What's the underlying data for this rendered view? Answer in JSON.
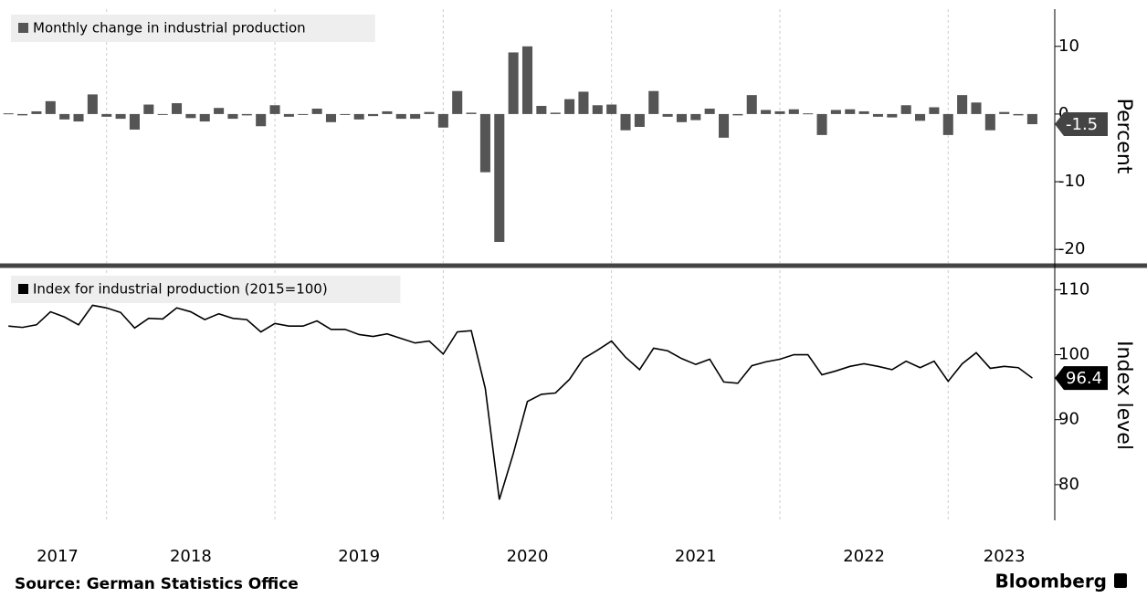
{
  "chart_data": [
    {
      "type": "bar",
      "legend": "Monthly change in industrial production",
      "y_label": "Percent",
      "color": "#555555",
      "values": [
        0.1,
        -0.2,
        0.4,
        1.9,
        -0.8,
        -1.1,
        2.9,
        -0.4,
        -0.7,
        -2.3,
        1.4,
        -0.1,
        1.6,
        -0.6,
        -1.1,
        0.9,
        -0.7,
        -0.2,
        -1.8,
        1.3,
        -0.4,
        0.0,
        0.8,
        -1.2,
        0.0,
        -0.8,
        -0.3,
        0.4,
        -0.7,
        -0.7,
        0.3,
        -2.0,
        3.4,
        0.2,
        -8.6,
        -18.9,
        9.1,
        10.0,
        1.2,
        0.2,
        2.2,
        3.3,
        1.3,
        1.4,
        -2.4,
        -1.9,
        3.4,
        -0.4,
        -1.2,
        -0.9,
        0.8,
        -3.5,
        -0.2,
        2.8,
        0.6,
        0.4,
        0.7,
        0.1,
        -3.1,
        0.6,
        0.7,
        0.4,
        -0.4,
        -0.5,
        1.3,
        -1.0,
        1.0,
        -3.1,
        2.8,
        1.7,
        -2.4,
        0.3,
        -0.2,
        -1.5
      ],
      "xlim": [
        -0.6,
        74.6
      ],
      "xgrid": [
        7,
        19,
        31,
        43,
        55,
        67
      ],
      "ylim": [
        -22,
        15.5
      ],
      "yticks": [
        10,
        0,
        -10,
        -20
      ]
    },
    {
      "type": "line",
      "legend": "Index for industrial production (2015=100)",
      "y_label": "Index level",
      "color": "#000000",
      "values": [
        104.4,
        104.2,
        104.6,
        106.6,
        105.8,
        104.6,
        107.6,
        107.2,
        106.5,
        104.1,
        105.6,
        105.5,
        107.2,
        106.6,
        105.4,
        106.3,
        105.6,
        105.4,
        103.5,
        104.8,
        104.4,
        104.4,
        105.2,
        103.9,
        103.9,
        103.1,
        102.8,
        103.2,
        102.5,
        101.8,
        102.1,
        100.1,
        103.5,
        103.7,
        94.8,
        77.7,
        84.8,
        92.8,
        93.9,
        94.1,
        96.2,
        99.4,
        100.7,
        102.1,
        99.6,
        97.7,
        101.0,
        100.6,
        99.4,
        98.5,
        99.3,
        95.8,
        95.6,
        98.3,
        98.9,
        99.3,
        100.0,
        100.0,
        96.9,
        97.5,
        98.2,
        98.6,
        98.2,
        97.7,
        99.0,
        98.0,
        99.0,
        95.9,
        98.6,
        100.3,
        97.9,
        98.2,
        98.0,
        96.4
      ],
      "xlim": [
        -0.6,
        74.6
      ],
      "xgrid": [
        7,
        19,
        31,
        43,
        55,
        67
      ],
      "xticks": [
        {
          "value": 3.5,
          "label": "2017"
        },
        {
          "value": 13,
          "label": "2018"
        },
        {
          "value": 25,
          "label": "2019"
        },
        {
          "value": 37,
          "label": "2020"
        },
        {
          "value": 49,
          "label": "2021"
        },
        {
          "value": 61,
          "label": "2022"
        },
        {
          "value": 71,
          "label": "2023"
        }
      ],
      "ylim": [
        74.5,
        113
      ],
      "yticks": [
        110,
        100,
        90,
        80
      ]
    }
  ],
  "source": "Source: German Statistics Office",
  "brand": "Bloomberg"
}
